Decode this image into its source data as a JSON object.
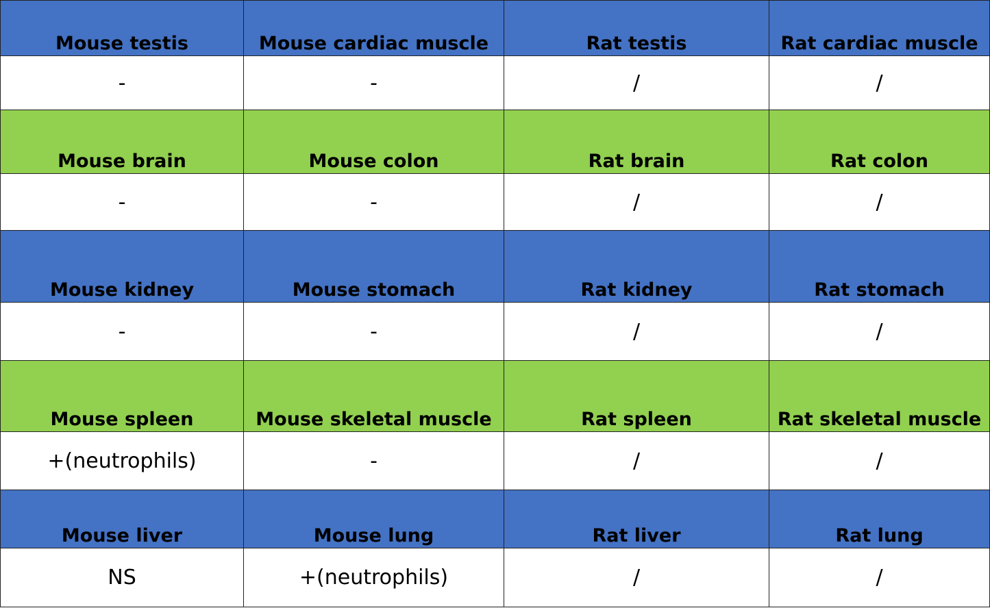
{
  "table": {
    "rows": [
      {
        "header": [
          "Mouse testis",
          "Mouse cardiac muscle",
          "Rat testis",
          "Rat cardiac muscle"
        ],
        "values": [
          "-",
          "-",
          "/",
          "/"
        ]
      },
      {
        "header": [
          "Mouse brain",
          "Mouse colon",
          "Rat brain",
          "Rat colon"
        ],
        "values": [
          "-",
          "-",
          "/",
          "/"
        ]
      },
      {
        "header": [
          "Mouse kidney",
          "Mouse stomach",
          "Rat kidney",
          "Rat stomach"
        ],
        "values": [
          "-",
          "-",
          "/",
          "/"
        ]
      },
      {
        "header": [
          "Mouse spleen",
          "Mouse skeletal muscle",
          "Rat spleen",
          "Rat skeletal muscle"
        ],
        "values": [
          "+(neutrophils)",
          "-",
          "/",
          "/"
        ]
      },
      {
        "header": [
          "Mouse liver",
          "Mouse lung",
          "Rat liver",
          "Rat lung"
        ],
        "values": [
          "NS",
          "+(neutrophils)",
          "/",
          "/"
        ]
      }
    ]
  }
}
